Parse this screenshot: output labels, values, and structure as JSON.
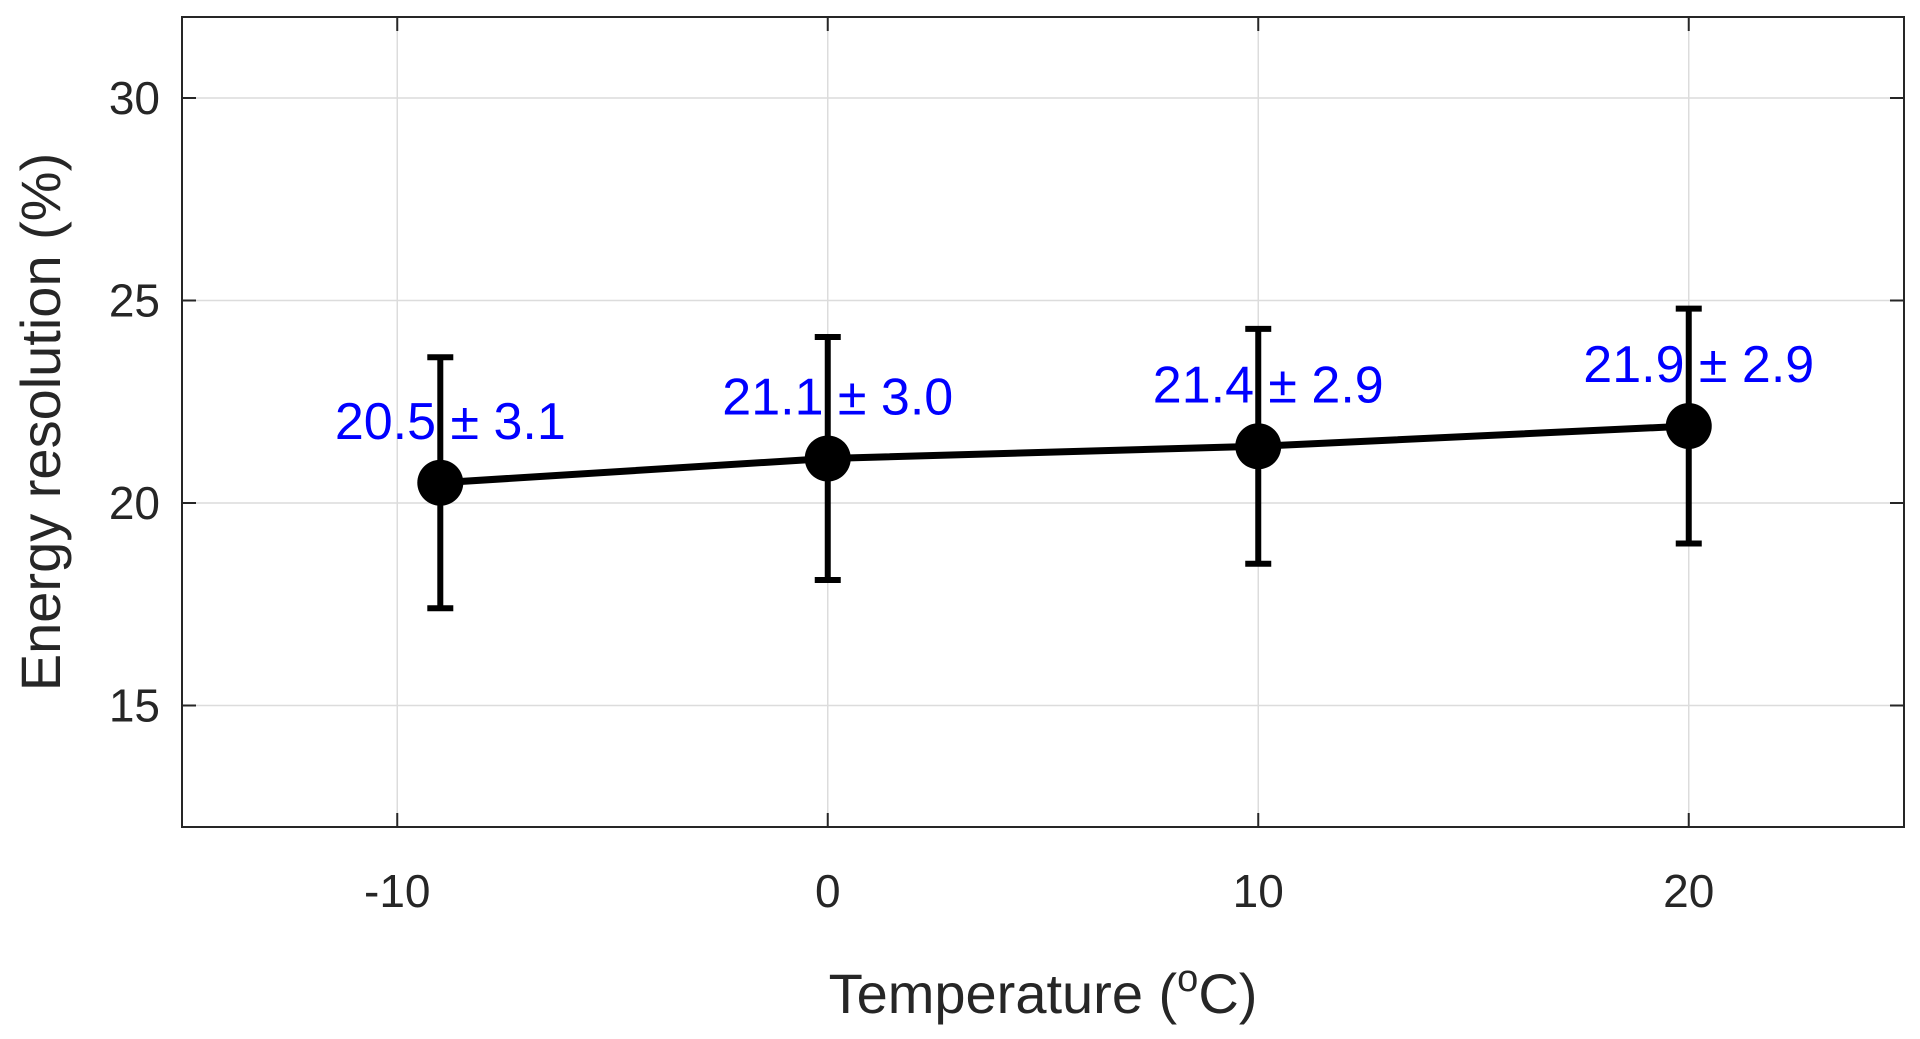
{
  "chart_data": {
    "type": "line",
    "title": "",
    "xlabel": "Temperature (",
    "xlabel_unit_superscript": "o",
    "xlabel_unit_suffix": "C)",
    "ylabel": "Energy resolution (%)",
    "xlim": [
      -15,
      25
    ],
    "ylim": [
      12,
      32
    ],
    "x_ticks": [
      -10,
      0,
      10,
      20
    ],
    "y_ticks": [
      15,
      20,
      25,
      30
    ],
    "x_tick_labels": [
      "-10",
      "0",
      "10",
      "20"
    ],
    "y_tick_labels": [
      "15",
      "20",
      "25",
      "30"
    ],
    "grid": true,
    "series": [
      {
        "x": [
          -9,
          0,
          10,
          20
        ],
        "y": [
          20.5,
          21.1,
          21.4,
          21.9
        ],
        "error": [
          3.1,
          3.0,
          2.9,
          2.9
        ],
        "labels": [
          "20.5 ± 3.1",
          "21.1 ± 3.0",
          "21.4 ± 2.9",
          "21.9 ± 2.9"
        ]
      }
    ],
    "colors": {
      "line": "#000000",
      "marker": "#000000",
      "label": "#0000ff",
      "grid": "#dcdcdc",
      "axis": "#262626"
    }
  }
}
